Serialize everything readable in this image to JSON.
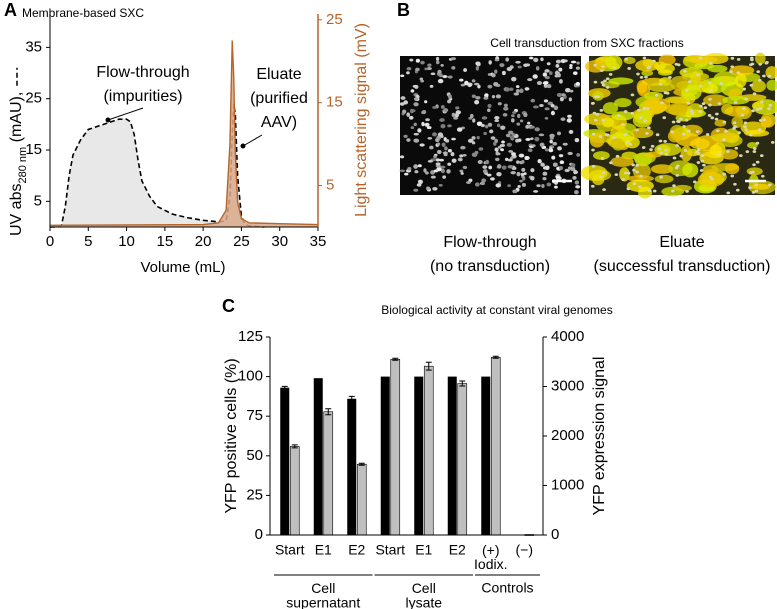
{
  "labels": [
    "A",
    "B",
    "C"
  ],
  "panel_b": {
    "title": "Cell transduction from SXC fractions",
    "captions": [
      "Flow-through\n(no transduction)",
      "Eluate\n(successful transduction)"
    ]
  },
  "chart_data": [
    {
      "type": "area",
      "title": "Membrane-based SXC",
      "xlabel": "Volume (mL)",
      "y_label": {
        "main": "UV abs",
        "sub": "280 nm",
        "unit": " (mAU),"
      },
      "y2label": "Light scattering signal (mV)",
      "xlim": [
        0,
        35
      ],
      "xticks": [
        0,
        5,
        10,
        15,
        20,
        25,
        30,
        35
      ],
      "ylim": [
        0,
        41.5
      ],
      "yticks": [
        5,
        15,
        25,
        35
      ],
      "y2lim": [
        0,
        25.7
      ],
      "y2ticks": [
        5,
        15,
        25
      ],
      "annotations": [
        "Flow-through\n(impurities)",
        "Eluate\n(purified\nAAV)"
      ],
      "series": [
        {
          "color": "#000000",
          "fill": "#e4e4e4",
          "dashed": true,
          "x": [
            0,
            1,
            1.5,
            2,
            2.5,
            3,
            4,
            5,
            6,
            7,
            8,
            9,
            10,
            10.5,
            11,
            11.5,
            12,
            13,
            14,
            16,
            18,
            20,
            22,
            23,
            23.5,
            23.8,
            24,
            24.2,
            24.5,
            25,
            25.5,
            26,
            28
          ],
          "values": [
            0,
            0,
            0.3,
            4,
            10,
            14,
            17,
            19,
            19.5,
            20,
            20.5,
            21,
            21,
            20.5,
            18,
            13,
            9,
            6,
            4,
            2.5,
            1.8,
            1.3,
            1,
            1.2,
            6,
            18,
            24,
            22,
            10,
            2,
            0.5,
            0.2,
            0
          ]
        },
        {
          "color": "#b5652b",
          "fill": "#d9a98a",
          "axis": "y2",
          "x": [
            0,
            20,
            22,
            23,
            23.5,
            23.8,
            24,
            24.2,
            24.5,
            25,
            26,
            30,
            35
          ],
          "values": [
            0.2,
            0.3,
            0.5,
            2,
            10,
            22.5,
            18,
            9,
            3,
            1,
            0.5,
            0.4,
            0.3
          ]
        }
      ]
    },
    {
      "type": "bar",
      "title": "Biological activity at constant viral genomes",
      "ylabel": "YFP positive cells (%)",
      "y2label": "YFP expression signal",
      "groups": [
        {
          "label": "Cell\nsupernatant",
          "categories": [
            "Start",
            "E1",
            "E2"
          ]
        },
        {
          "label": "Cell\nlysate",
          "categories": [
            "Start",
            "E1",
            "E2"
          ]
        },
        {
          "label": "Controls",
          "categories": [
            "(+)\nIodix.",
            "(−)"
          ]
        }
      ],
      "ylim": [
        0,
        125
      ],
      "yticks": [
        0,
        25,
        50,
        75,
        100,
        125
      ],
      "y2lim": [
        0,
        4000
      ],
      "y2ticks": [
        0,
        1000,
        2000,
        3000,
        4000
      ],
      "series": [
        {
          "color": "#000000",
          "values": [
            93,
            99,
            86,
            100,
            100,
            100,
            100,
            0
          ],
          "errors": [
            0.8,
            0,
            1.5,
            0,
            0,
            0,
            0,
            0
          ]
        },
        {
          "color": "#bfbfbf",
          "axis": "y2",
          "values": [
            1790,
            2490,
            1430,
            3550,
            3410,
            3060,
            3590,
            10
          ],
          "errors": [
            30,
            60,
            20,
            20,
            80,
            50,
            20,
            0
          ]
        }
      ]
    }
  ]
}
